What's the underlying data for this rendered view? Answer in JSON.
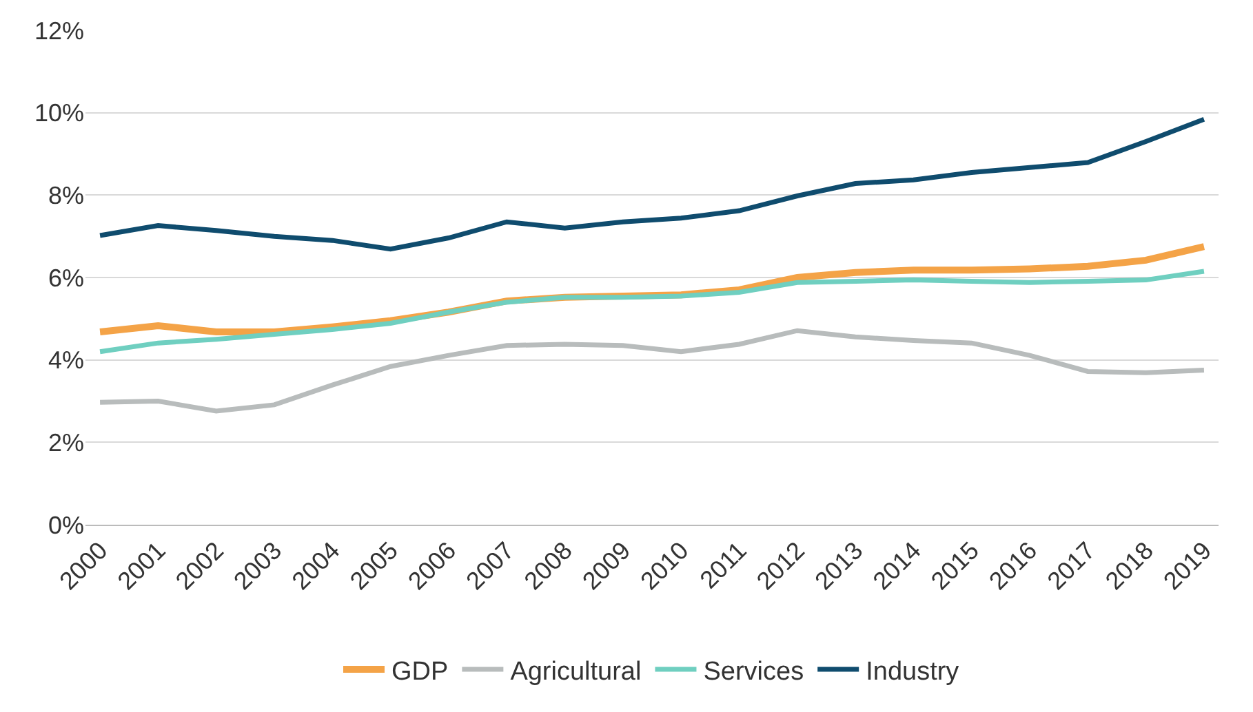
{
  "chart_data": {
    "type": "line",
    "categories": [
      "2000",
      "2001",
      "2002",
      "2003",
      "2004",
      "2005",
      "2006",
      "2007",
      "2008",
      "2009",
      "2010",
      "2011",
      "2012",
      "2013",
      "2014",
      "2015",
      "2016",
      "2017",
      "2018",
      "2019"
    ],
    "series": [
      {
        "name": "GDP",
        "color": "#f4a347",
        "values": [
          4.68,
          4.83,
          4.68,
          4.68,
          4.8,
          4.95,
          5.16,
          5.43,
          5.52,
          5.55,
          5.58,
          5.7,
          6.0,
          6.12,
          6.18,
          6.18,
          6.21,
          6.27,
          6.42,
          6.75
        ]
      },
      {
        "name": "Agricultural",
        "color": "#b8bcbc",
        "values": [
          2.97,
          3.0,
          2.76,
          2.91,
          3.39,
          3.84,
          4.11,
          4.35,
          4.38,
          4.35,
          4.2,
          4.38,
          4.71,
          4.56,
          4.47,
          4.41,
          4.11,
          3.72,
          3.69,
          3.75
        ]
      },
      {
        "name": "Services",
        "color": "#6fcfc0",
        "values": [
          4.2,
          4.41,
          4.5,
          4.62,
          4.74,
          4.89,
          5.16,
          5.4,
          5.52,
          5.52,
          5.55,
          5.64,
          5.88,
          5.91,
          5.94,
          5.91,
          5.88,
          5.91,
          5.94,
          6.15
        ]
      },
      {
        "name": "Industry",
        "color": "#0f4c6e",
        "values": [
          7.02,
          7.26,
          7.14,
          7.0,
          6.9,
          6.69,
          6.96,
          7.35,
          7.2,
          7.35,
          7.44,
          7.62,
          7.98,
          8.28,
          8.37,
          8.55,
          8.67,
          8.79,
          9.3,
          9.84
        ]
      }
    ],
    "ylim": [
      0,
      12
    ],
    "yticks": [
      {
        "value": 0,
        "label": "0%"
      },
      {
        "value": 2,
        "label": "2%"
      },
      {
        "value": 4,
        "label": "4%"
      },
      {
        "value": 6,
        "label": "6%"
      },
      {
        "value": 8,
        "label": "8%"
      },
      {
        "value": 10,
        "label": "10%"
      },
      {
        "value": 12,
        "label": "12%"
      }
    ],
    "grid": "y",
    "legend": "bottom",
    "marker": "none",
    "line_style": "solid"
  }
}
